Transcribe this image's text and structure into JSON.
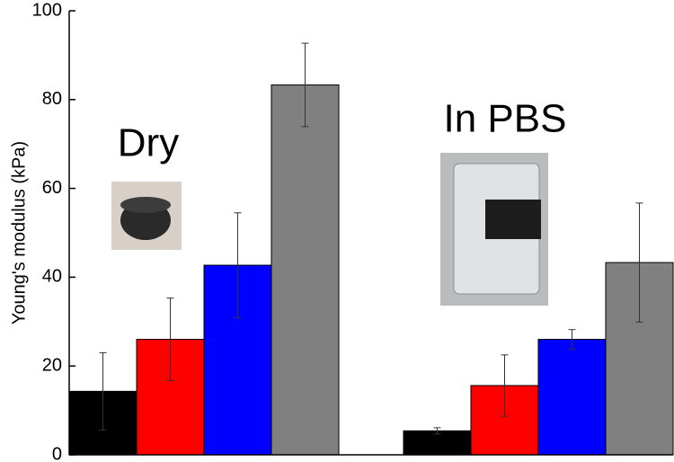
{
  "chart_data": {
    "type": "bar",
    "y_label": "Young's modulus (kPa)",
    "categories": [
      "Dry",
      "In PBS"
    ],
    "series": [
      {
        "color": "#000000",
        "values": [
          14.3,
          5.4
        ],
        "errors": [
          8.7,
          0.7
        ]
      },
      {
        "color": "#ff0000",
        "values": [
          26,
          15.6
        ],
        "errors": [
          9.3,
          6.9
        ]
      },
      {
        "color": "#0000ff",
        "values": [
          42.7,
          26
        ],
        "errors": [
          11.8,
          2.2
        ]
      },
      {
        "color": "#808080",
        "values": [
          83.3,
          43.3
        ],
        "errors": [
          9.4,
          13.4
        ]
      }
    ],
    "ylim": [
      0,
      100
    ],
    "yticks": [
      0,
      20,
      40,
      60,
      80,
      100
    ]
  }
}
